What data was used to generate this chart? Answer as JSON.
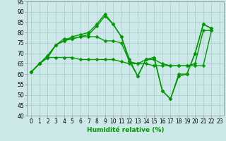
{
  "xlabel": "Humidité relative (%)",
  "background_color": "#cce8e8",
  "grid_color": "#aacccc",
  "line_color": "#009900",
  "series": [
    [
      61,
      65,
      69,
      74,
      76,
      78,
      79,
      80,
      84,
      89,
      84,
      78,
      67,
      59,
      67,
      68,
      52,
      48,
      60,
      60,
      70,
      84,
      82
    ],
    [
      61,
      65,
      68,
      74,
      77,
      77,
      78,
      79,
      83,
      88,
      84,
      78,
      66,
      59,
      67,
      68,
      52,
      48,
      59,
      60,
      70,
      84,
      82
    ],
    [
      61,
      65,
      68,
      68,
      68,
      68,
      67,
      67,
      67,
      67,
      67,
      66,
      65,
      65,
      65,
      64,
      64,
      64,
      64,
      64,
      64,
      64,
      81
    ],
    [
      61,
      65,
      68,
      74,
      76,
      77,
      78,
      78,
      78,
      76,
      76,
      75,
      66,
      65,
      67,
      67,
      65,
      64,
      64,
      64,
      65,
      81,
      81
    ]
  ],
  "ylim": [
    40,
    95
  ],
  "yticks": [
    40,
    45,
    50,
    55,
    60,
    65,
    70,
    75,
    80,
    85,
    90,
    95
  ],
  "xlim": [
    -0.5,
    23.5
  ],
  "xticks": [
    0,
    1,
    2,
    3,
    4,
    5,
    6,
    7,
    8,
    9,
    10,
    11,
    12,
    13,
    14,
    15,
    16,
    17,
    18,
    19,
    20,
    21,
    22,
    23
  ],
  "markersize": 2.5,
  "linewidth": 1.0,
  "figsize": [
    3.2,
    2.0
  ],
  "dpi": 100,
  "tick_fontsize": 5.5,
  "xlabel_fontsize": 6.5
}
